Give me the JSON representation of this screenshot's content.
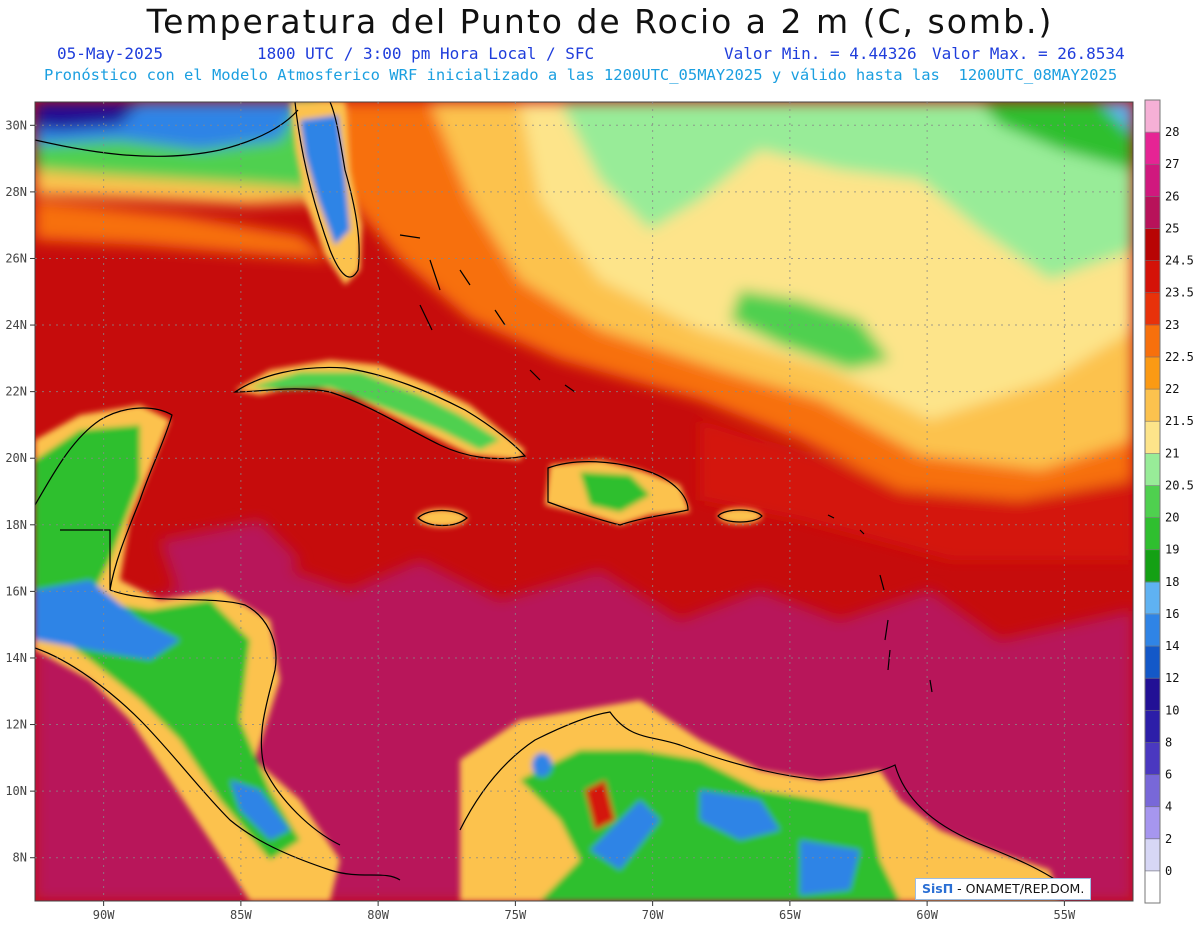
{
  "header": {
    "title": "Temperatura del Punto de Rocio a 2 m (C, somb.)",
    "date": "05-May-2025",
    "time": "1800 UTC / 3:00 pm Hora Local / SFC",
    "min": "Valor Min. = 4.44326",
    "max": "Valor Max. = 26.8534",
    "forecast": "Pronóstico con el Modelo Atmosferico WRF inicializado a las 1200UTC_05MAY2025 y válido hasta las  1200UTC_08MAY2025"
  },
  "map": {
    "lon_range": [
      -92.5,
      -52.5
    ],
    "lat_range": [
      6.7,
      30.7
    ],
    "lon_ticks": [
      -90,
      -85,
      -80,
      -75,
      -70,
      -65,
      -60,
      -55
    ],
    "lon_labels": [
      "90W",
      "85W",
      "80W",
      "75W",
      "70W",
      "65W",
      "60W",
      "55W"
    ],
    "lat_ticks": [
      30,
      28,
      26,
      24,
      22,
      20,
      18,
      16,
      14,
      12,
      10,
      8
    ],
    "lat_labels": [
      "30N",
      "28N",
      "26N",
      "24N",
      "22N",
      "20N",
      "18N",
      "16N",
      "14N",
      "12N",
      "10N",
      "8N"
    ],
    "grid": true,
    "ocean_color": "#c60c0c"
  },
  "colorbar": {
    "labels": [
      "0",
      "2",
      "4",
      "6",
      "8",
      "10",
      "12",
      "14",
      "16",
      "18",
      "19",
      "20",
      "20.5",
      "21",
      "21.5",
      "22",
      "22.5",
      "23",
      "23.5",
      "24.5",
      "25",
      "26",
      "27",
      "28"
    ],
    "colors": [
      "#ffffff",
      "#d7d7f5",
      "#a696ef",
      "#7868d8",
      "#4a38c0",
      "#2c1ea8",
      "#221095",
      "#1358c8",
      "#2f84e6",
      "#5fb2f2",
      "#14a014",
      "#2fbf2f",
      "#4fd04f",
      "#98ec98",
      "#fde48a",
      "#fcc24e",
      "#fb9a14",
      "#f7700c",
      "#e8320a",
      "#d41208",
      "#b80404",
      "#b8125a",
      "#d0187e",
      "#e62494",
      "#f6b0d6"
    ]
  },
  "credit": {
    "logo": "SisΠ",
    "text": " - ONAMET/REP.DOM."
  }
}
